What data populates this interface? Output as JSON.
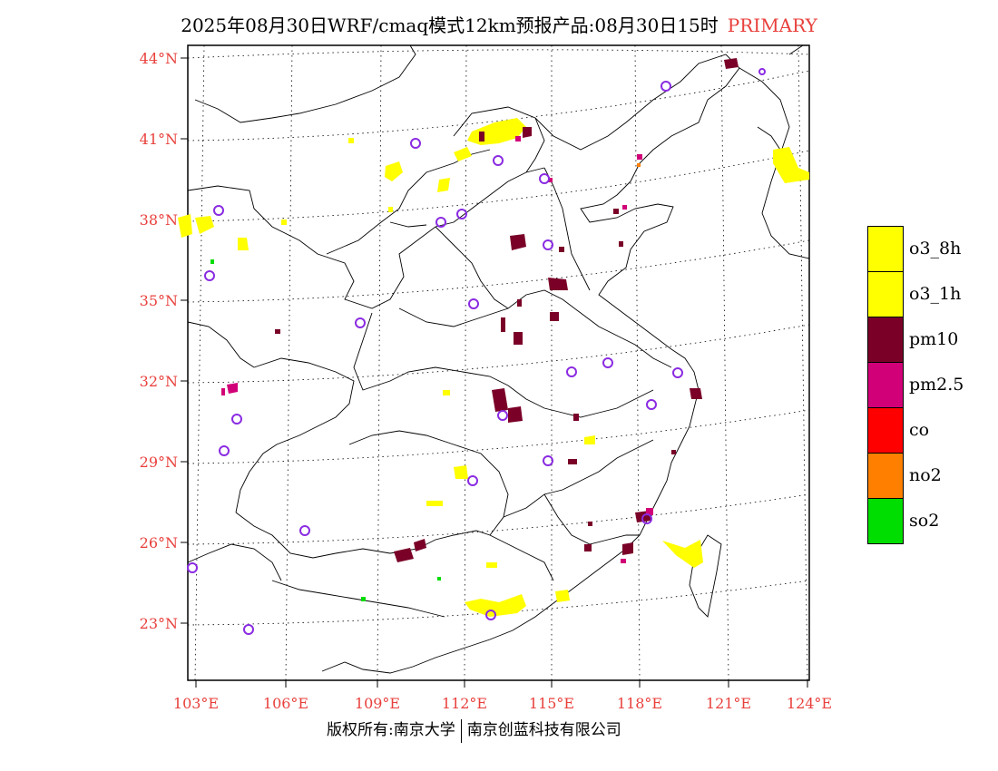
{
  "title": {
    "text": "2025年08月30日WRF/cmaq模式12km预报产品:08月30日15时",
    "tag": "PRIMARY"
  },
  "map": {
    "lat_labels": [
      "44°N",
      "41°N",
      "38°N",
      "35°N",
      "32°N",
      "29°N",
      "26°N",
      "23°N"
    ],
    "lon_labels": [
      "103°E",
      "106°E",
      "109°E",
      "112°E",
      "115°E",
      "118°E",
      "121°E",
      "124°E"
    ]
  },
  "legend": {
    "items": [
      {
        "label": "o3_8h",
        "color": "#ffff00"
      },
      {
        "label": "o3_1h",
        "color": "#ffff00"
      },
      {
        "label": "pm10",
        "color": "#7a0028"
      },
      {
        "label": "pm2.5",
        "color": "#d10078"
      },
      {
        "label": "co",
        "color": "#ff0000"
      },
      {
        "label": "no2",
        "color": "#ff8000"
      },
      {
        "label": "so2",
        "color": "#00dd00"
      }
    ]
  },
  "footer": {
    "left": "版权所有:南京大学",
    "right": "南京创蓝科技有限公司"
  },
  "colors": {
    "accent": "#e8403c",
    "station_marker": "#8a2be2"
  }
}
